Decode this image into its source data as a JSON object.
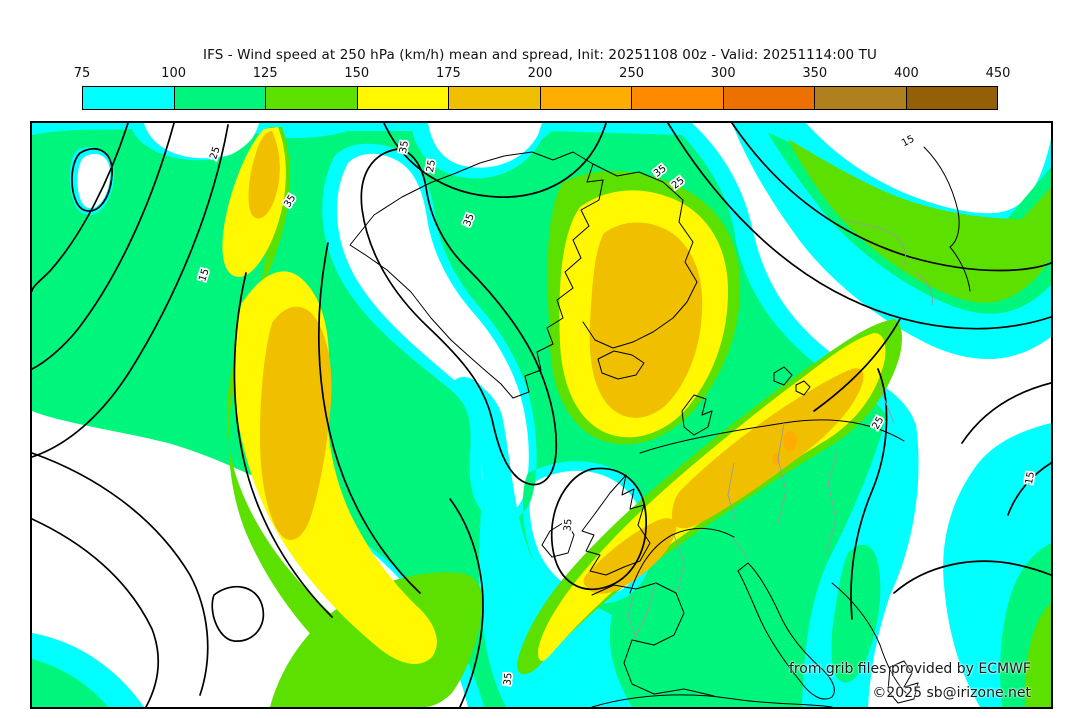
{
  "header": {
    "title": "IFS - Wind speed at 250 hPa (km/h) mean and spread, Init: 20251108 00z - Valid: 20251114:00 TU"
  },
  "colorbar": {
    "unit_note": "km/h",
    "ticks": [
      "75",
      "100",
      "125",
      "150",
      "175",
      "200",
      "250",
      "300",
      "350",
      "400",
      "450"
    ],
    "segments": [
      {
        "range": "75-100",
        "color": "#00FFFF"
      },
      {
        "range": "100-125",
        "color": "#00F57D"
      },
      {
        "range": "125-150",
        "color": "#5CE000"
      },
      {
        "range": "150-175",
        "color": "#FFF800"
      },
      {
        "range": "175-200",
        "color": "#F0C000"
      },
      {
        "range": "200-250",
        "color": "#FFAD00"
      },
      {
        "range": "250-300",
        "color": "#FF8A00"
      },
      {
        "range": "300-350",
        "color": "#EC7100"
      },
      {
        "range": "350-400",
        "color": "#B0801F"
      },
      {
        "range": "400-450",
        "color": "#935F07"
      }
    ]
  },
  "map": {
    "attribution_line1": "from grib files provided by ECMWF",
    "attribution_line2": "©2025 sb@irizone.net",
    "contour_labels": [
      {
        "text": "25"
      },
      {
        "text": "15"
      },
      {
        "text": "35"
      },
      {
        "text": "35"
      },
      {
        "text": "25"
      },
      {
        "text": "35"
      },
      {
        "text": "35"
      },
      {
        "text": "25"
      },
      {
        "text": "15"
      },
      {
        "text": "35"
      },
      {
        "text": "35"
      },
      {
        "text": "25"
      },
      {
        "text": "15"
      }
    ]
  }
}
